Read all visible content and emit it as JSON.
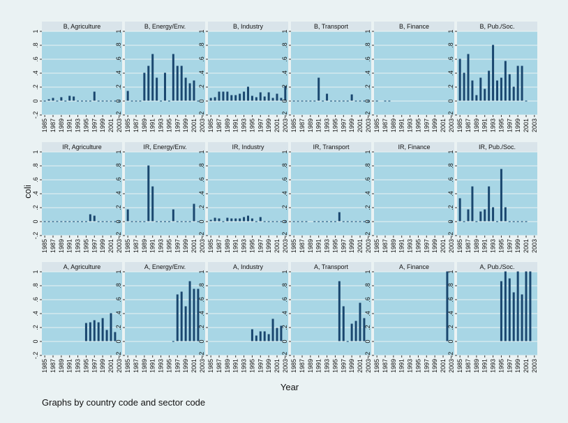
{
  "figure": {
    "y_label": "coli",
    "x_label": "Year",
    "note": "Graphs by country code and sector code"
  },
  "axes": {
    "x": [
      1985,
      1986,
      1987,
      1988,
      1989,
      1990,
      1991,
      1992,
      1993,
      1994,
      1995,
      1996,
      1997,
      1998,
      1999,
      2000,
      2001,
      2002,
      2003
    ],
    "xlim": [
      1984.3,
      2003.7
    ],
    "xticks": [
      1985,
      1987,
      1989,
      1991,
      1993,
      1995,
      1997,
      1999,
      2001,
      2003
    ],
    "ylim": [
      -0.2,
      1
    ],
    "yticks": [
      {
        "value": -0.2,
        "label": "-.2"
      },
      0,
      {
        "value": 0.2,
        "label": ".2"
      },
      {
        "value": 0.4,
        "label": ".4"
      },
      {
        "value": 0.6,
        "label": ".6"
      },
      {
        "value": 0.8,
        "label": ".8"
      },
      1
    ],
    "grid": true,
    "color": "#1a476f"
  },
  "chart_data": [
    {
      "type": "bar",
      "title": "B, Agriculture",
      "values": [
        0,
        0.02,
        0.04,
        0,
        0.05,
        0,
        0.07,
        0.06,
        0,
        0,
        0,
        0,
        0.13,
        0,
        0,
        0,
        0,
        0,
        0
      ]
    },
    {
      "type": "bar",
      "title": "B, Energy/Env.",
      "values": [
        0.14,
        0,
        0,
        0,
        0.4,
        0.5,
        0.67,
        0.33,
        0,
        0.4,
        0,
        0.67,
        0.5,
        0.5,
        0.33,
        0.25,
        0.29,
        0,
        null
      ]
    },
    {
      "type": "bar",
      "title": "B, Industry",
      "values": [
        0.04,
        0.05,
        0.13,
        0.13,
        0.13,
        0.08,
        0.08,
        0.1,
        0.13,
        0.2,
        0.07,
        0.05,
        0.12,
        0.06,
        0.12,
        0.04,
        0.1,
        0.04,
        0.21
      ]
    },
    {
      "type": "bar",
      "title": "B, Transport",
      "values": [
        0,
        0,
        0,
        0,
        0,
        0,
        0.33,
        0,
        0.1,
        0,
        0,
        0,
        0,
        0,
        0.09,
        0,
        0,
        0,
        0
      ]
    },
    {
      "type": "bar",
      "title": "B, Finance",
      "values": [
        0,
        null,
        0,
        0,
        null,
        null,
        null,
        null,
        null,
        null,
        null,
        null,
        null,
        null,
        null,
        null,
        null,
        null,
        null
      ]
    },
    {
      "type": "bar",
      "title": "B, Pub./Soc.",
      "values": [
        0.6,
        0.4,
        0.67,
        0.29,
        0.08,
        0.33,
        0.17,
        0.43,
        0.8,
        0.29,
        0.33,
        0.57,
        0.38,
        0.2,
        0.5,
        0.5,
        0,
        null,
        null
      ]
    },
    {
      "type": "bar",
      "title": "IR, Agriculture",
      "values": [
        0,
        0,
        0,
        0,
        0,
        0,
        0,
        0,
        0,
        0,
        0,
        0.1,
        0.08,
        0,
        0,
        0,
        0,
        0,
        0
      ]
    },
    {
      "type": "bar",
      "title": "IR, Energy/Env.",
      "values": [
        0.17,
        0,
        0,
        0,
        0,
        0.8,
        0.5,
        0,
        0,
        0,
        0,
        0.17,
        0,
        0,
        0,
        0,
        0.25,
        0,
        null
      ]
    },
    {
      "type": "bar",
      "title": "IR, Industry",
      "values": [
        0.02,
        0.05,
        0.04,
        0,
        0.05,
        0.04,
        0.04,
        0.04,
        0.06,
        0.08,
        0.04,
        0,
        0.06,
        0,
        0,
        0,
        0,
        0,
        0
      ]
    },
    {
      "type": "bar",
      "title": "IR, Transport",
      "values": [
        0,
        0,
        0,
        0,
        null,
        0,
        0,
        0,
        0,
        0,
        0,
        0.13,
        0,
        0,
        0,
        0,
        0,
        0,
        0
      ]
    },
    {
      "type": "bar",
      "title": "IR, Finance",
      "values": [
        null,
        null,
        null,
        null,
        null,
        null,
        null,
        null,
        null,
        null,
        null,
        null,
        null,
        null,
        null,
        null,
        null,
        null,
        0
      ]
    },
    {
      "type": "bar",
      "title": "IR, Pub./Soc.",
      "values": [
        0.33,
        0,
        0.17,
        0.5,
        0,
        0.14,
        0.17,
        0.5,
        0.2,
        0,
        0.75,
        0.2,
        0,
        0,
        0,
        0,
        0,
        null,
        null
      ]
    },
    {
      "type": "bar",
      "title": "A, Agriculture",
      "values": [
        null,
        null,
        null,
        null,
        null,
        null,
        null,
        null,
        null,
        null,
        0.26,
        0.27,
        0.3,
        0.27,
        0.33,
        0.16,
        0.4,
        0.13,
        null
      ]
    },
    {
      "type": "bar",
      "title": "A, Energy/Env.",
      "values": [
        null,
        null,
        null,
        null,
        null,
        null,
        null,
        null,
        null,
        null,
        null,
        0,
        0.67,
        0.71,
        0.5,
        0.86,
        0.75,
        0.75,
        null
      ]
    },
    {
      "type": "bar",
      "title": "A, Industry",
      "values": [
        null,
        null,
        null,
        null,
        null,
        null,
        null,
        null,
        null,
        null,
        0.17,
        0.08,
        0.14,
        0.14,
        0.1,
        0.32,
        0.19,
        0.22,
        null
      ]
    },
    {
      "type": "bar",
      "title": "A, Transport",
      "values": [
        null,
        null,
        null,
        null,
        null,
        null,
        null,
        null,
        null,
        null,
        null,
        0.86,
        0.5,
        0,
        0.25,
        0.29,
        0.55,
        0.33,
        null
      ]
    },
    {
      "type": "bar",
      "title": "A, Finance",
      "values": [
        null,
        null,
        null,
        null,
        null,
        null,
        null,
        null,
        null,
        null,
        null,
        null,
        null,
        null,
        null,
        null,
        null,
        1,
        null
      ]
    },
    {
      "type": "bar",
      "title": "A, Pub./Soc.",
      "values": [
        null,
        null,
        null,
        null,
        null,
        null,
        null,
        null,
        null,
        null,
        0.86,
        1,
        0.9,
        0.7,
        1,
        0.67,
        1,
        1,
        null
      ]
    }
  ]
}
